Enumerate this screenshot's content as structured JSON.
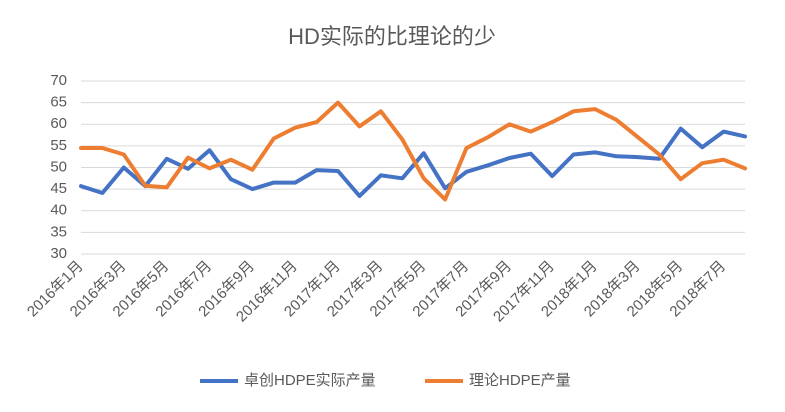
{
  "chart_data": {
    "type": "line",
    "title": "HD实际的比理论的少",
    "categories": [
      "2016年1月",
      null,
      "2016年3月",
      null,
      "2016年5月",
      null,
      "2016年7月",
      null,
      "2016年9月",
      null,
      "2016年11月",
      null,
      "2017年1月",
      null,
      "2017年3月",
      null,
      "2017年5月",
      null,
      "2017年7月",
      null,
      "2017年9月",
      null,
      "2017年11月",
      null,
      "2018年1月",
      null,
      "2018年3月",
      null,
      "2018年5月",
      null,
      "2018年7月",
      null
    ],
    "series": [
      {
        "name": "卓创HDPE实际产量",
        "color": "#4472c4",
        "values": [
          45.7,
          44.1,
          50,
          45.7,
          52,
          49.7,
          54,
          47.3,
          45,
          46.5,
          46.5,
          49.4,
          49.2,
          43.4,
          48.2,
          47.5,
          53.3,
          45.2,
          49,
          50.5,
          52.2,
          53.2,
          48,
          53,
          53.5,
          52.6,
          52.4,
          52,
          59,
          54.7,
          58.3,
          57.2
        ]
      },
      {
        "name": "理论HDPE产量",
        "color": "#ed7d31",
        "values": [
          54.5,
          54.5,
          53,
          45.8,
          45.4,
          52.3,
          49.8,
          51.8,
          49.5,
          56.7,
          59.2,
          60.5,
          65,
          59.5,
          63,
          56.5,
          47.5,
          42.6,
          54.5,
          57,
          60,
          58.3,
          60.5,
          63,
          63.5,
          61,
          57,
          53,
          47.3,
          51,
          51.8,
          49.8
        ]
      }
    ],
    "ylim": [
      30,
      70
    ],
    "yticks": [
      30,
      35,
      40,
      45,
      50,
      55,
      60,
      65,
      70
    ],
    "grid": true,
    "legend": "bottom"
  }
}
